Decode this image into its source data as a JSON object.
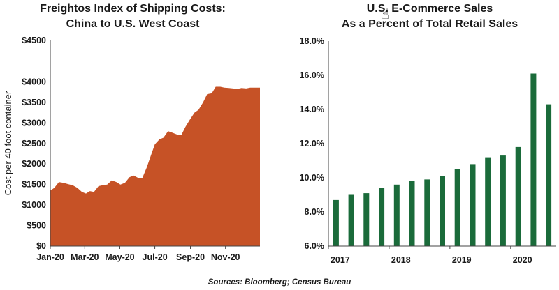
{
  "left": {
    "title_line1": "Freightos Index of Shipping Costs:",
    "title_line2": "China to U.S. West Coast"
  },
  "right": {
    "title_line1": "U.S. E-Commerce Sales",
    "title_line2": "As a Percent of Total Retail Sales"
  },
  "source": "Sources: Bloomberg; Census Bureau",
  "cursor_icon": "hand-pointer-icon",
  "chart_data": [
    {
      "type": "area",
      "title": "Freightos Index of Shipping Costs: China to U.S. West Coast",
      "ylabel": "Cost per 40 foot container",
      "xlabel": "",
      "x_tick_labels": [
        "Jan-20",
        "Mar-20",
        "May-20",
        "Jul-20",
        "Sep-20",
        "Nov-20"
      ],
      "x_tick_dates": [
        "2020-01-01",
        "2020-03-01",
        "2020-05-01",
        "2020-07-01",
        "2020-09-01",
        "2020-11-01"
      ],
      "y_tick_labels": [
        "$0",
        "$500",
        "$1000",
        "$1500",
        "$2000",
        "$2500",
        "$3000",
        "$3500",
        "$4000",
        "$4500"
      ],
      "ylim": [
        0,
        4500
      ],
      "xlim": [
        "2020-01-01",
        "2020-12-31"
      ],
      "color": "#c65226",
      "x": [
        "2020-01-01",
        "2020-01-08",
        "2020-01-16",
        "2020-01-24",
        "2020-02-01",
        "2020-02-09",
        "2020-02-17",
        "2020-02-25",
        "2020-03-03",
        "2020-03-10",
        "2020-03-17",
        "2020-03-25",
        "2020-04-01",
        "2020-04-09",
        "2020-04-17",
        "2020-04-25",
        "2020-05-02",
        "2020-05-10",
        "2020-05-18",
        "2020-05-25",
        "2020-06-02",
        "2020-06-09",
        "2020-06-17",
        "2020-06-24",
        "2020-07-01",
        "2020-07-09",
        "2020-07-16",
        "2020-07-24",
        "2020-08-01",
        "2020-08-08",
        "2020-08-16",
        "2020-08-23",
        "2020-08-31",
        "2020-09-08",
        "2020-09-15",
        "2020-09-23",
        "2020-09-30",
        "2020-10-08",
        "2020-10-15",
        "2020-10-23",
        "2020-10-30",
        "2020-11-07",
        "2020-11-14",
        "2020-11-22",
        "2020-11-29",
        "2020-12-07",
        "2020-12-14",
        "2020-12-22",
        "2020-12-31"
      ],
      "values": [
        1350,
        1420,
        1560,
        1540,
        1510,
        1480,
        1420,
        1320,
        1280,
        1340,
        1320,
        1460,
        1480,
        1500,
        1600,
        1560,
        1500,
        1540,
        1680,
        1720,
        1660,
        1650,
        1920,
        2200,
        2480,
        2600,
        2640,
        2800,
        2760,
        2720,
        2700,
        2900,
        3080,
        3250,
        3320,
        3500,
        3700,
        3720,
        3880,
        3880,
        3860,
        3850,
        3840,
        3830,
        3850,
        3840,
        3860,
        3860,
        3860
      ]
    },
    {
      "type": "bar",
      "title": "U.S. E-Commerce Sales As a Percent of Total Retail Sales",
      "xlabel": "",
      "ylabel": "",
      "ylim": [
        6.0,
        18.0
      ],
      "y_tick_labels": [
        "6.0%",
        "8.0%",
        "10.0%",
        "12.0%",
        "14.0%",
        "16.0%",
        "18.0%"
      ],
      "x_tick_labels": [
        "2017",
        "2018",
        "2019",
        "2020"
      ],
      "categories": [
        "2017 Q1",
        "2017 Q2",
        "2017 Q3",
        "2017 Q4",
        "2018 Q1",
        "2018 Q2",
        "2018 Q3",
        "2018 Q4",
        "2019 Q1",
        "2019 Q2",
        "2019 Q3",
        "2019 Q4",
        "2020 Q1",
        "2020 Q2",
        "2020 Q3"
      ],
      "values": [
        8.7,
        9.0,
        9.1,
        9.4,
        9.6,
        9.8,
        9.9,
        10.1,
        10.5,
        10.8,
        11.2,
        11.3,
        11.8,
        16.1,
        14.3
      ],
      "color": "#1a6b3a"
    }
  ]
}
